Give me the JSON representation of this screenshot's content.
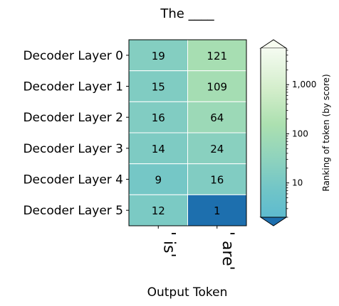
{
  "chart_data": {
    "type": "heatmap",
    "title": "The ____",
    "xlabel": "Output Token",
    "ylabel": "",
    "rows": [
      "Decoder Layer 0",
      "Decoder Layer 1",
      "Decoder Layer 2",
      "Decoder Layer 3",
      "Decoder Layer 4",
      "Decoder Layer 5"
    ],
    "columns": [
      "' is'",
      "' are'"
    ],
    "values": [
      [
        19,
        121
      ],
      [
        15,
        109
      ],
      [
        16,
        64
      ],
      [
        14,
        24
      ],
      [
        9,
        16
      ],
      [
        12,
        1
      ]
    ],
    "colorbar": {
      "label": "Ranking of token (by score)",
      "scale": "log",
      "range": [
        2,
        5500
      ],
      "ticks": [
        10,
        100,
        1000
      ],
      "tick_labels": [
        "10",
        "100",
        "1,000"
      ],
      "extend": "both",
      "colormap": "GnBu reversed"
    }
  }
}
